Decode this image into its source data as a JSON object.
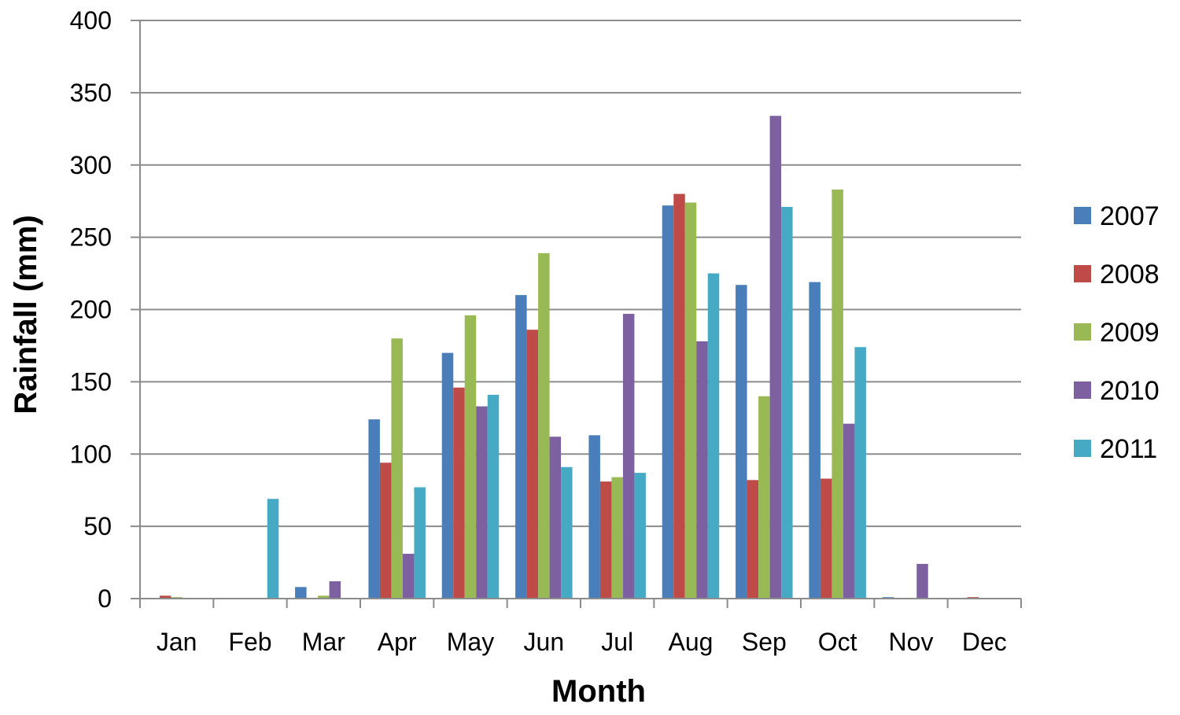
{
  "chart_data": {
    "type": "bar",
    "title": "",
    "xlabel": "Month",
    "ylabel": "Rainfall (mm)",
    "ylim": [
      0,
      400
    ],
    "yticks": [
      0,
      50,
      100,
      150,
      200,
      250,
      300,
      350,
      400
    ],
    "grid": true,
    "legend_position": "right",
    "categories": [
      "Jan",
      "Feb",
      "Mar",
      "Apr",
      "May",
      "Jun",
      "Jul",
      "Aug",
      "Sep",
      "Oct",
      "Nov",
      "Dec"
    ],
    "series": [
      {
        "name": "2007",
        "color": "#4A7EBB",
        "values": [
          0,
          0,
          8,
          124,
          170,
          210,
          113,
          272,
          217,
          219,
          1,
          0
        ]
      },
      {
        "name": "2008",
        "color": "#BE4B48",
        "values": [
          2,
          0,
          0,
          94,
          146,
          186,
          81,
          280,
          82,
          83,
          0,
          1
        ]
      },
      {
        "name": "2009",
        "color": "#98B954",
        "values": [
          1,
          0,
          2,
          180,
          196,
          239,
          84,
          274,
          140,
          283,
          0,
          0
        ]
      },
      {
        "name": "2010",
        "color": "#7D60A0",
        "values": [
          0,
          0,
          12,
          31,
          133,
          112,
          197,
          178,
          334,
          121,
          24,
          0
        ]
      },
      {
        "name": "2011",
        "color": "#46AAC5",
        "values": [
          0,
          69,
          0,
          77,
          141,
          91,
          87,
          225,
          271,
          174,
          0,
          0
        ]
      }
    ]
  }
}
